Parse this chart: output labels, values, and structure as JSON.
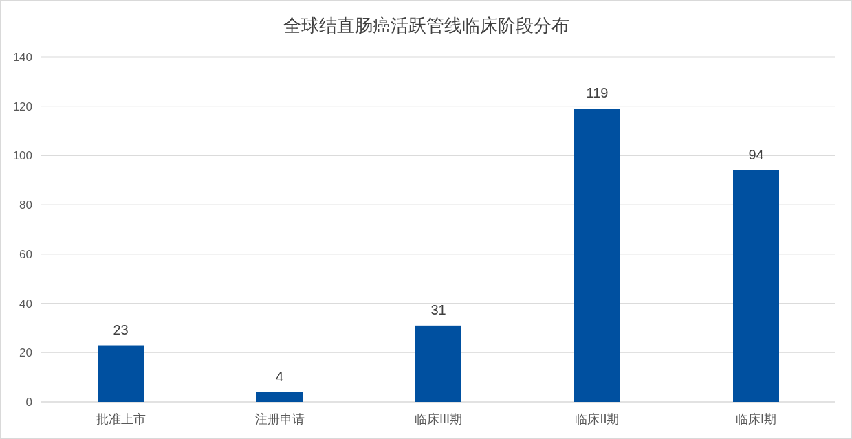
{
  "chart_data": {
    "type": "bar",
    "title": "全球结直肠癌活跃管线临床阶段分布",
    "categories": [
      "批准上市",
      "注册申请",
      "临床III期",
      "临床II期",
      "临床I期"
    ],
    "values": [
      23,
      4,
      31,
      119,
      94
    ],
    "color": "#0050a0",
    "ylim": [
      0,
      140
    ],
    "yticks": [
      0,
      20,
      40,
      60,
      80,
      100,
      120,
      140
    ],
    "grid": "y",
    "data_labels": true
  }
}
